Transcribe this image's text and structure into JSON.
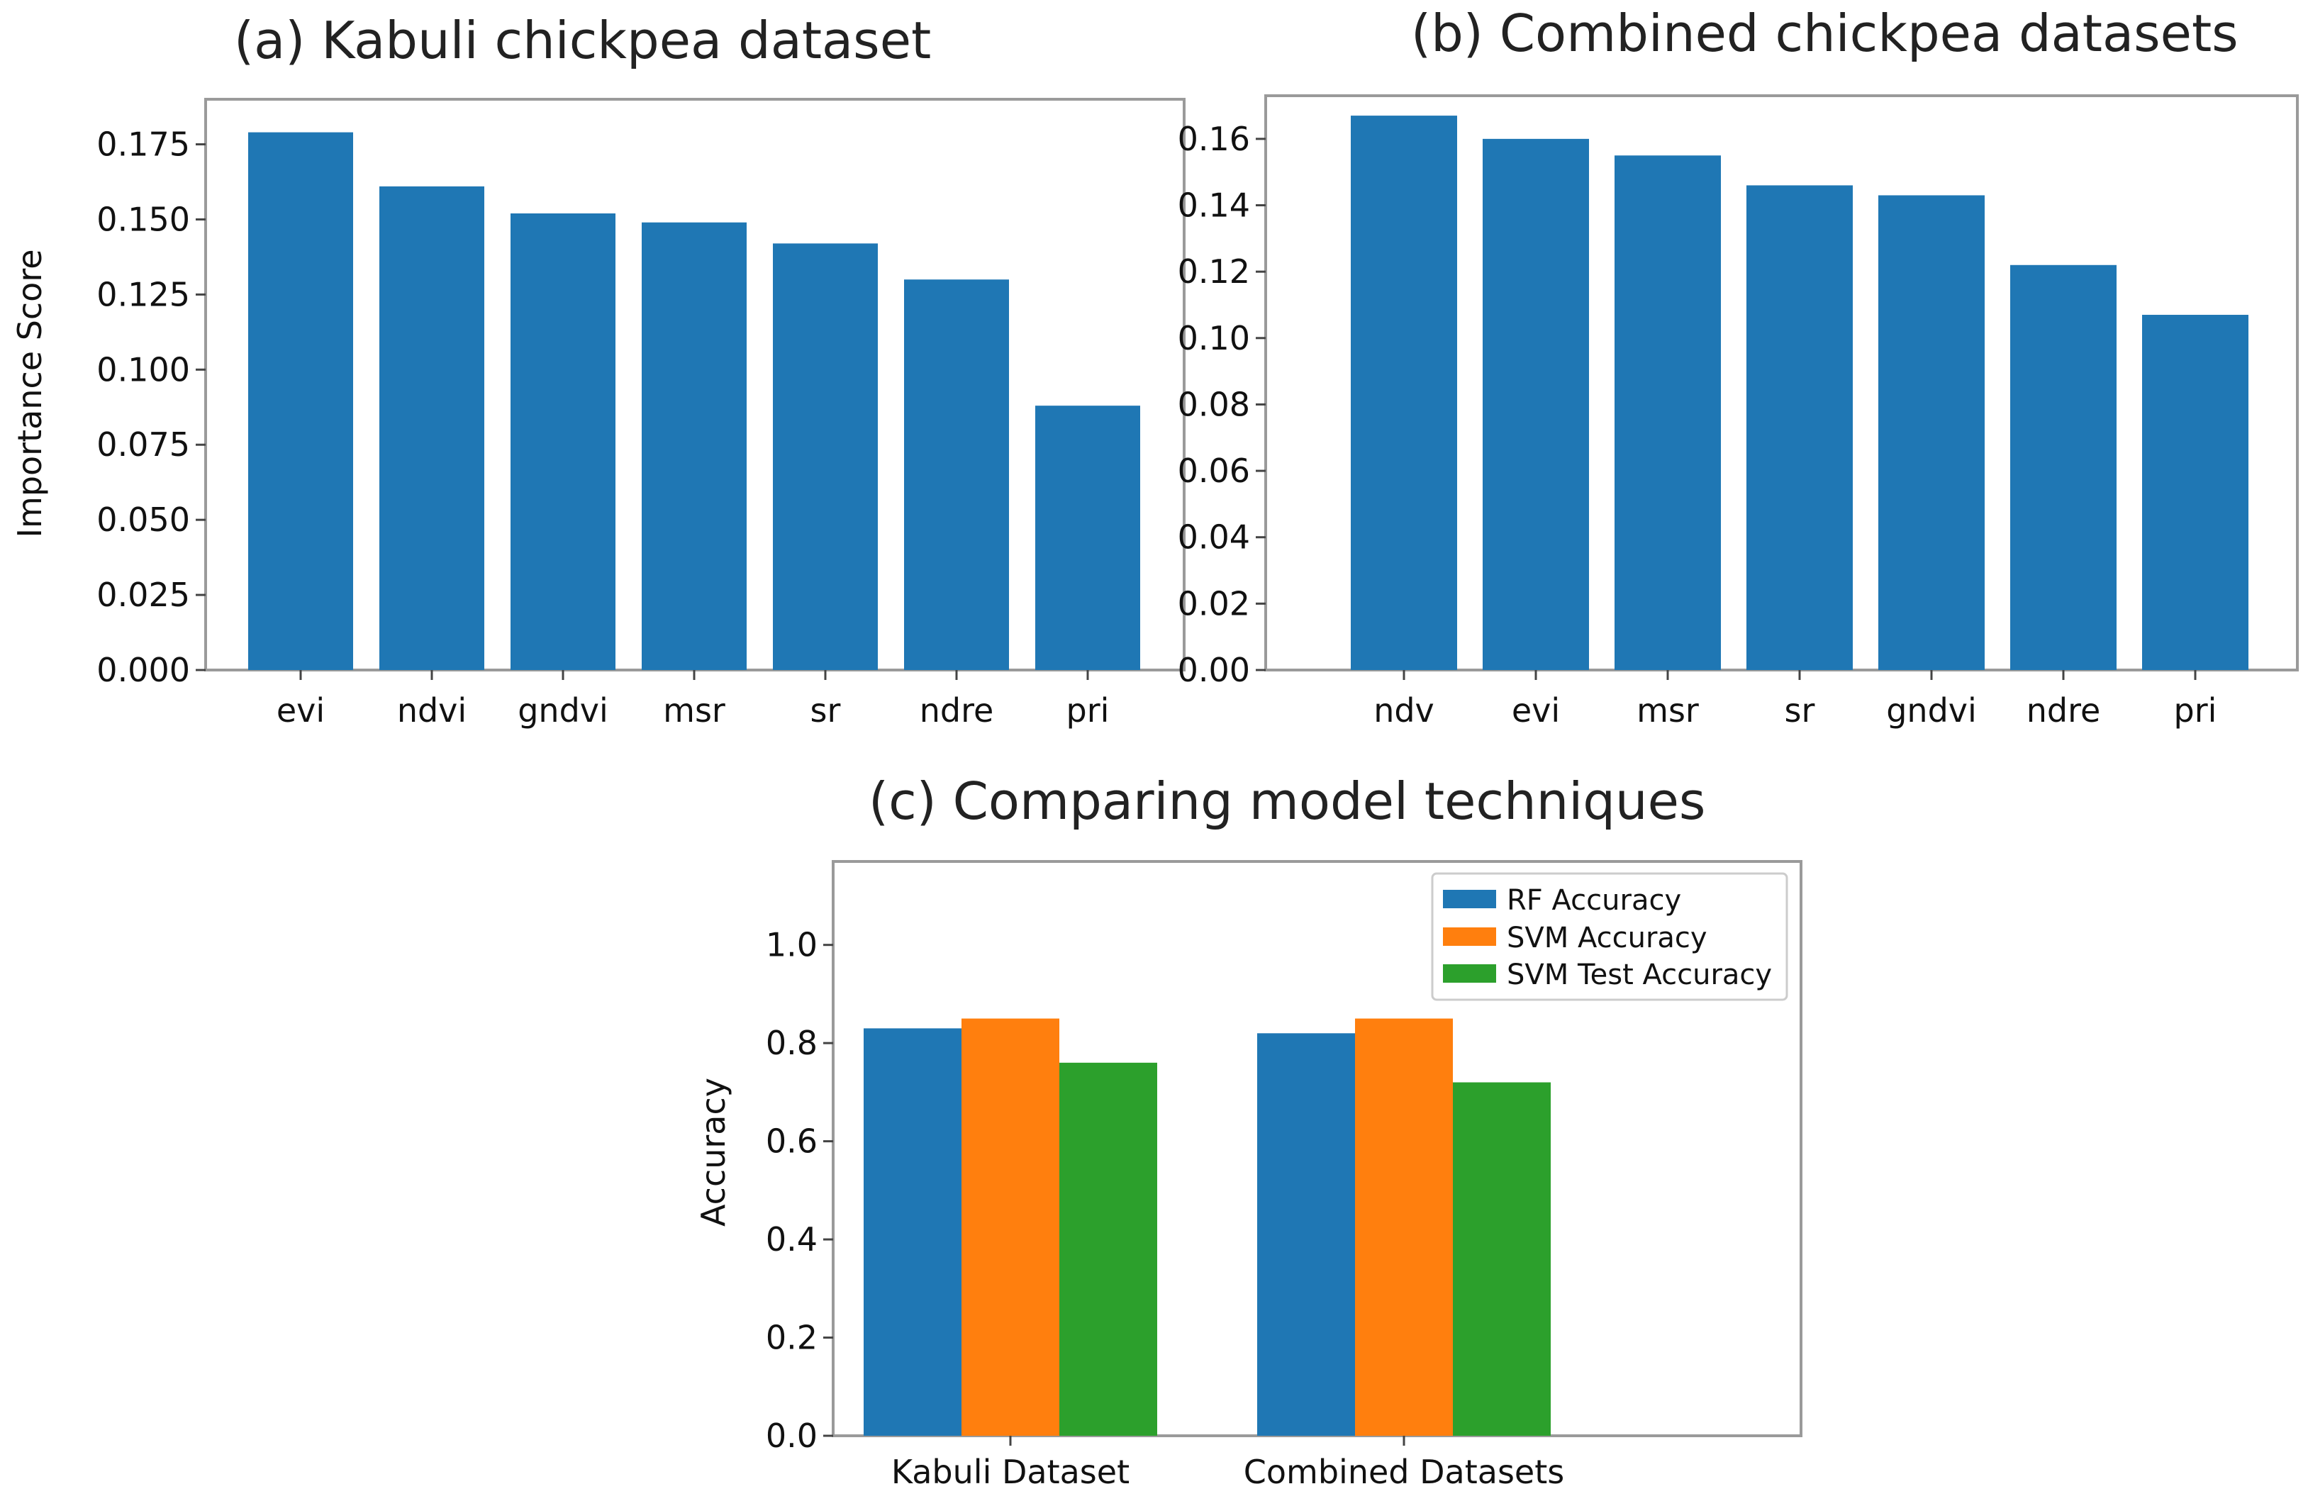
{
  "chart_data": [
    {
      "type": "bar",
      "title": "(a)  Kabuli chickpea dataset",
      "xlabel": "",
      "ylabel": "Importance Score",
      "categories": [
        "evi",
        "ndvi",
        "gndvi",
        "msr",
        "sr",
        "ndre",
        "pri"
      ],
      "values": [
        0.179,
        0.161,
        0.152,
        0.149,
        0.142,
        0.13,
        0.088
      ],
      "ylim": [
        0,
        0.19
      ],
      "yticks": [
        0.0,
        0.025,
        0.05,
        0.075,
        0.1,
        0.125,
        0.15,
        0.175
      ],
      "ytick_labels": [
        "0.000",
        "0.025",
        "0.050",
        "0.075",
        "0.100",
        "0.125",
        "0.150",
        "0.175"
      ],
      "color": "#1f77b4",
      "grid": false
    },
    {
      "type": "bar",
      "title": "(b)  Combined chickpea datasets",
      "xlabel": "",
      "ylabel": "",
      "categories": [
        "ndv",
        "evi",
        "msr",
        "sr",
        "gndvi",
        "ndre",
        "pri"
      ],
      "values": [
        0.167,
        0.16,
        0.155,
        0.146,
        0.143,
        0.122,
        0.107
      ],
      "ylim": [
        0,
        0.173
      ],
      "yticks": [
        0.0,
        0.02,
        0.04,
        0.06,
        0.08,
        0.1,
        0.12,
        0.14,
        0.16
      ],
      "ytick_labels": [
        "0.00",
        "0.02",
        "0.04",
        "0.06",
        "0.08",
        "0.10",
        "0.12",
        "0.14",
        "0.16"
      ],
      "color": "#1f77b4",
      "grid": false
    },
    {
      "type": "bar",
      "title": "(c)  Comparing model techniques",
      "xlabel": "",
      "ylabel": "Accuracy",
      "categories": [
        "Kabuli Dataset",
        "Combined Datasets"
      ],
      "series": [
        {
          "name": "RF Accuracy",
          "values": [
            0.83,
            0.82
          ],
          "color": "#1f77b4"
        },
        {
          "name": "SVM Accuracy",
          "values": [
            0.85,
            0.85
          ],
          "color": "#ff7f0e"
        },
        {
          "name": "SVM Test Accuracy",
          "values": [
            0.76,
            0.72
          ],
          "color": "#2ca02c"
        }
      ],
      "ylim": [
        0,
        1.17
      ],
      "yticks": [
        0.0,
        0.2,
        0.4,
        0.6,
        0.8,
        1.0
      ],
      "ytick_labels": [
        "0.0",
        "0.2",
        "0.4",
        "0.6",
        "0.8",
        "1.0"
      ],
      "legend": "top-right",
      "grid": false
    }
  ]
}
